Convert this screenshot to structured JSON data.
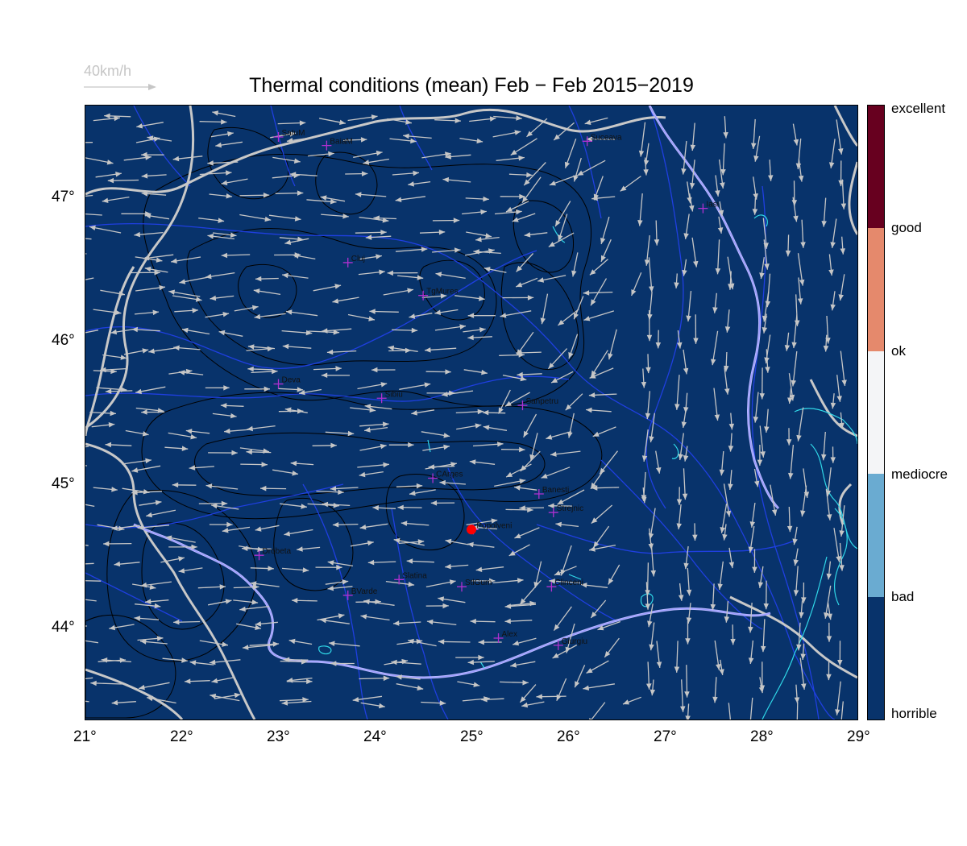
{
  "title": "Thermal conditions (mean) Feb − Feb  2015−2019",
  "wind_scale": {
    "label": "40km/h",
    "color": "#c6c6c6"
  },
  "x_axis": {
    "labels": [
      "21°",
      "22°",
      "23°",
      "24°",
      "25°",
      "26°",
      "27°",
      "28°",
      "29°"
    ],
    "range": [
      21,
      29
    ]
  },
  "y_axis": {
    "labels": [
      "44°",
      "45°",
      "46°",
      "47°"
    ],
    "range": [
      43.35,
      47.65
    ]
  },
  "map_fill_color": "#08336b",
  "colorbar": {
    "categories": [
      {
        "label": "horrible",
        "color": "#08336b"
      },
      {
        "label": "bad",
        "color": "#6aabd1"
      },
      {
        "label": "mediocre",
        "color": "#f4f5f7"
      },
      {
        "label": "ok",
        "color": "#e5896c"
      },
      {
        "label": "good",
        "color": "#67001f"
      },
      {
        "label": "excellent",
        "color": "#67001f"
      }
    ]
  },
  "cities": [
    {
      "name": "SatuM",
      "lon": 23.0,
      "lat": 47.43
    },
    {
      "name": "BaiaM",
      "lon": 23.5,
      "lat": 47.37
    },
    {
      "name": "Suceava",
      "lon": 26.2,
      "lat": 47.4
    },
    {
      "name": "Iasi",
      "lon": 27.4,
      "lat": 46.93
    },
    {
      "name": "Cluj",
      "lon": 23.72,
      "lat": 46.55
    },
    {
      "name": "TgMures",
      "lon": 24.5,
      "lat": 46.32
    },
    {
      "name": "Deva",
      "lon": 23.0,
      "lat": 45.7
    },
    {
      "name": "Sibiu",
      "lon": 24.07,
      "lat": 45.6
    },
    {
      "name": "Sanpetru",
      "lon": 25.53,
      "lat": 45.55
    },
    {
      "name": "CArges",
      "lon": 24.6,
      "lat": 45.04
    },
    {
      "name": "Banesti",
      "lon": 25.7,
      "lat": 44.93
    },
    {
      "name": "Strejnic",
      "lon": 25.85,
      "lat": 44.8
    },
    {
      "name": "Popolveni",
      "lon": 25.02,
      "lat": 44.68
    },
    {
      "name": "Drobeta",
      "lon": 22.8,
      "lat": 44.5
    },
    {
      "name": "Slatina",
      "lon": 24.25,
      "lat": 44.33
    },
    {
      "name": "StlGum",
      "lon": 24.9,
      "lat": 44.28
    },
    {
      "name": "Clinceni",
      "lon": 25.83,
      "lat": 44.28
    },
    {
      "name": "BVarde",
      "lon": 23.72,
      "lat": 44.22
    },
    {
      "name": "Alex",
      "lon": 25.28,
      "lat": 43.92
    },
    {
      "name": "Giurgiu",
      "lon": 25.9,
      "lat": 43.87
    }
  ],
  "selected_location": {
    "name": "Popolveni",
    "lon": 25.0,
    "lat": 44.68,
    "color": "#ff0000"
  },
  "colors": {
    "city_marker": "#b030d0",
    "wind_arrow": "#c6c6c6",
    "river": "#1f3fe0",
    "border": "#c8c8c8",
    "lake": "#30d8e8",
    "contour": "#000000"
  }
}
